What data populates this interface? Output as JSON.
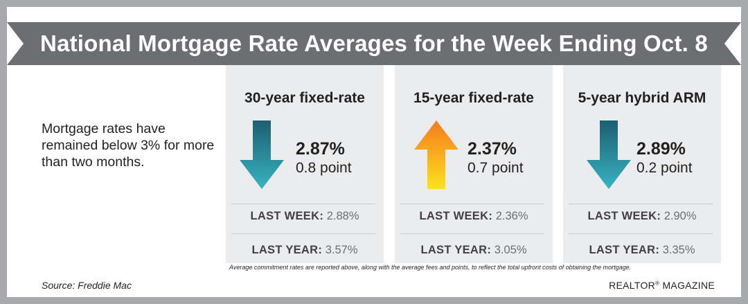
{
  "header": {
    "title": "National Mortgage Rate Averages for the Week Ending Oct. 8"
  },
  "intro_text": "Mortgage rates have remained below 3% for more than two months.",
  "cards": [
    {
      "title": "30-year fixed-rate",
      "direction": "down",
      "arrow_icon": "down-arrow-icon",
      "rate": "2.87%",
      "points": "0.8 point",
      "last_week_label": "LAST WEEK:",
      "last_week_value": "2.88%",
      "last_year_label": "LAST YEAR:",
      "last_year_value": "3.57%"
    },
    {
      "title": "15-year fixed-rate",
      "direction": "up",
      "arrow_icon": "up-arrow-icon",
      "rate": "2.37%",
      "points": "0.7 point",
      "last_week_label": "LAST WEEK:",
      "last_week_value": "2.36%",
      "last_year_label": "LAST YEAR:",
      "last_year_value": "3.05%"
    },
    {
      "title": "5-year hybrid ARM",
      "direction": "down",
      "arrow_icon": "down-arrow-icon",
      "rate": "2.89%",
      "points": "0.2 point",
      "last_week_label": "LAST WEEK:",
      "last_week_value": "2.90%",
      "last_year_label": "LAST YEAR:",
      "last_year_value": "3.35%"
    }
  ],
  "footnote": "Average commitment rates are reported above, along with the average fees and points, to reflect the total upfront costs of obtaining the mortgage.",
  "source": "Source: Freddie Mac",
  "publisher": {
    "name": "REALTOR",
    "mark": "®",
    "suffix": "MAGAZINE"
  },
  "colors": {
    "banner": "#6d6e71",
    "frame": "#a7a9ac",
    "card_bg": "#ebeced",
    "down_arrow_top": "#1c5f72",
    "down_arrow_bottom": "#38b3c2",
    "up_arrow_top": "#f47b20",
    "up_arrow_bottom": "#fde21b"
  }
}
